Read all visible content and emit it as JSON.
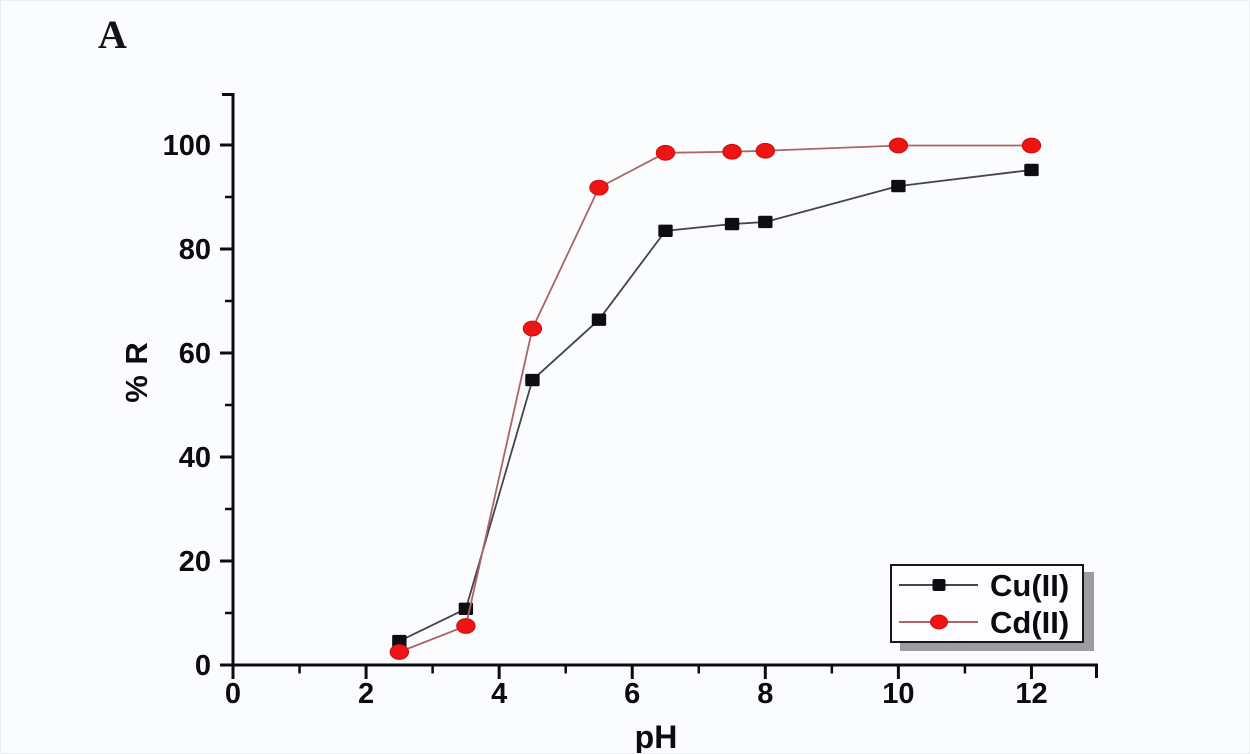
{
  "page": {
    "background": "#fbfcfe"
  },
  "panel_label": "A",
  "chart_data": {
    "type": "line",
    "title": "",
    "xlabel": "pH",
    "ylabel": "% R",
    "xlim": [
      0,
      13
    ],
    "ylim": [
      0,
      110
    ],
    "x_major_ticks": [
      0,
      2,
      4,
      6,
      8,
      10,
      12
    ],
    "x_minor_ticks": [
      1,
      3,
      5,
      7,
      9,
      11
    ],
    "y_major_ticks": [
      0,
      20,
      40,
      60,
      80,
      100
    ],
    "y_minor_ticks": [
      10,
      30,
      50,
      70,
      90
    ],
    "grid": false,
    "legend": {
      "position": "inside-lower-right",
      "border": true,
      "shadow": true
    },
    "axis_color": "#0b0b10",
    "series": [
      {
        "name": "Cu(II)",
        "marker": "square",
        "marker_color": "#0d0d12",
        "line_color": "#44444e",
        "x": [
          2.5,
          3.5,
          4.5,
          5.5,
          6.5,
          7.5,
          8,
          10,
          12
        ],
        "y": [
          4.6,
          10.8,
          54.8,
          66.4,
          83.5,
          84.8,
          85.2,
          92.1,
          95.2
        ]
      },
      {
        "name": "Cd(II)",
        "marker": "circle",
        "marker_color": "#ee1414",
        "marker_edge_color": "#c81010",
        "line_color": "#aa6565",
        "x": [
          2.5,
          3.5,
          4.5,
          5.5,
          6.5,
          7.5,
          8,
          10,
          12
        ],
        "y": [
          2.5,
          7.5,
          64.7,
          91.8,
          98.5,
          98.7,
          98.9,
          99.9,
          99.9
        ]
      }
    ]
  }
}
